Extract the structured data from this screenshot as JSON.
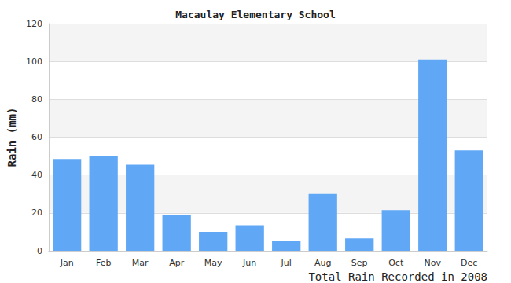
{
  "chart_data": {
    "type": "bar",
    "title": "Macaulay Elementary School",
    "xlabel": "Total Rain Recorded in 2008",
    "ylabel": "Rain (mm)",
    "categories": [
      "Jan",
      "Feb",
      "Mar",
      "Apr",
      "May",
      "Jun",
      "Jul",
      "Aug",
      "Sep",
      "Oct",
      "Nov",
      "Dec"
    ],
    "values": [
      48.5,
      50,
      45.5,
      19,
      10,
      13.5,
      5,
      30,
      6.5,
      21.5,
      101,
      53
    ],
    "color": "#60a8f5",
    "ylim": [
      0,
      120
    ],
    "yticks": [
      0,
      20,
      40,
      60,
      80,
      100,
      120
    ],
    "grid": true
  }
}
